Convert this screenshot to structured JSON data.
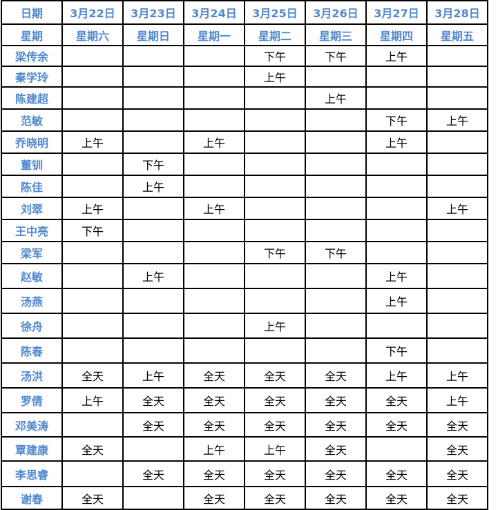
{
  "header": {
    "label": "日期",
    "dates": [
      "3月22日",
      "3月23日",
      "3月24日",
      "3月25日",
      "3月26日",
      "3月27日",
      "3月28日"
    ]
  },
  "weekday_row": {
    "label": "星期",
    "days": [
      "星期六",
      "星期日",
      "星期一",
      "星期二",
      "星期三",
      "星期四",
      "星期五"
    ]
  },
  "rows": [
    {
      "name": "梁传余",
      "cells": [
        "",
        "",
        "",
        "下午",
        "下午",
        "上午",
        ""
      ]
    },
    {
      "name": "秦学玲",
      "cells": [
        "",
        "",
        "",
        "上午",
        "",
        "",
        ""
      ]
    },
    {
      "name": "陈建超",
      "cells": [
        "",
        "",
        "",
        "",
        "上午",
        "",
        ""
      ]
    },
    {
      "name": "范敏",
      "cells": [
        "",
        "",
        "",
        "",
        "",
        "下午",
        "上午"
      ]
    },
    {
      "name": "乔晓明",
      "cells": [
        "上午",
        "",
        "上午",
        "",
        "",
        "上午",
        ""
      ]
    },
    {
      "name": "董钏",
      "cells": [
        "",
        "下午",
        "",
        "",
        "",
        "",
        ""
      ]
    },
    {
      "name": "陈佳",
      "cells": [
        "",
        "上午",
        "",
        "",
        "",
        "",
        ""
      ]
    },
    {
      "name": "刘翠",
      "cells": [
        "上午",
        "",
        "上午",
        "",
        "",
        "",
        "上午"
      ]
    },
    {
      "name": "王中亮",
      "cells": [
        "下午",
        "",
        "",
        "",
        "",
        "",
        ""
      ]
    },
    {
      "name": "梁军",
      "cells": [
        "",
        "",
        "",
        "下午",
        "下午",
        "",
        ""
      ]
    },
    {
      "name": "赵敏",
      "cells": [
        "",
        "上午",
        "",
        "",
        "",
        "上午",
        ""
      ]
    },
    {
      "name": "汤燕",
      "cells": [
        "",
        "",
        "",
        "",
        "",
        "上午",
        ""
      ]
    },
    {
      "name": "徐舟",
      "cells": [
        "",
        "",
        "",
        "上午",
        "",
        "",
        ""
      ]
    },
    {
      "name": "陈春",
      "cells": [
        "",
        "",
        "",
        "",
        "",
        "下午",
        ""
      ]
    },
    {
      "name": "汤洪",
      "cells": [
        "全天",
        "上午",
        "全天",
        "全天",
        "全天",
        "上午",
        "上午"
      ]
    },
    {
      "name": "罗倩",
      "cells": [
        "上午",
        "全天",
        "全天",
        "全天",
        "全天",
        "全天",
        "上午"
      ]
    },
    {
      "name": "邓美涛",
      "cells": [
        "",
        "全天",
        "全天",
        "全天",
        "全天",
        "全天",
        "全天"
      ]
    },
    {
      "name": "覃建康",
      "cells": [
        "全天",
        "",
        "上午",
        "上午",
        "全天",
        "",
        "全天"
      ]
    },
    {
      "name": "李思睿",
      "cells": [
        "",
        "全天",
        "全天",
        "全天",
        "全天",
        "全天",
        "全天"
      ]
    },
    {
      "name": "谢春",
      "cells": [
        "全天",
        "",
        "全天",
        "全天",
        "全天",
        "全天",
        "全天"
      ]
    }
  ]
}
